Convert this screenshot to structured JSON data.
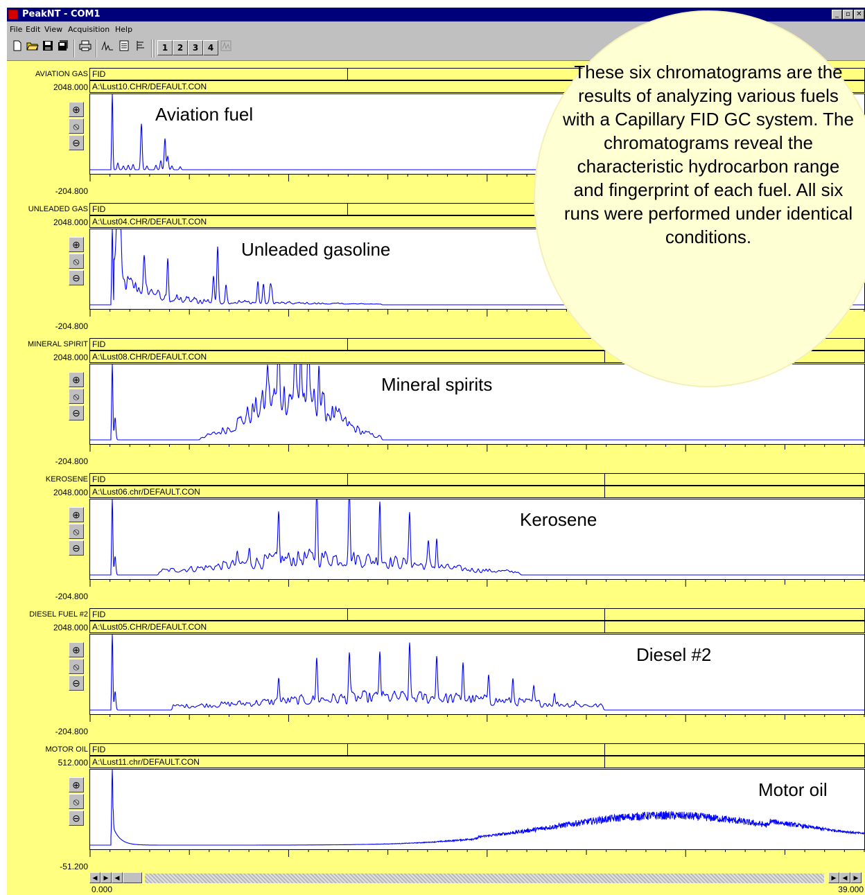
{
  "window": {
    "title": "PeakNT - COM1",
    "controls": [
      "_",
      "▫",
      "✕"
    ]
  },
  "menu": [
    "File",
    "Edit",
    "View",
    "Acquisition",
    "Help"
  ],
  "toolbar": {
    "icons": [
      "new-icon",
      "open-icon",
      "save-icon",
      "save-all-icon",
      "print-icon",
      "integrate-icon",
      "report-icon",
      "results-icon"
    ],
    "channel_buttons": [
      "1",
      "2",
      "3",
      "4"
    ]
  },
  "panels": [
    {
      "name": "AVIATION GAS",
      "detector": "FID",
      "file": "A:\\Lust10.CHR/DEFAULT.CON",
      "ymax": "2048.000",
      "ymin": "-204.800",
      "annotation": "Aviation fuel"
    },
    {
      "name": "UNLEADED GAS",
      "detector": "FID",
      "file": "A:\\Lust04.CHR/DEFAULT.CON",
      "ymax": "2048.000",
      "ymin": "-204.800",
      "annotation": "Unleaded gasoline"
    },
    {
      "name": "MINERAL SPIRIT",
      "detector": "FID",
      "file": "A:\\Lust08.CHR/DEFAULT.CON",
      "ymax": "2048.000",
      "ymin": "-204.800",
      "annotation": "Mineral spirits"
    },
    {
      "name": "KEROSENE",
      "detector": "FID",
      "file": "A:\\Lust06.chr/DEFAULT.CON",
      "ymax": "2048.000",
      "ymin": "-204.800",
      "annotation": "Kerosene"
    },
    {
      "name": "DIESEL FUEL #2",
      "detector": "FID",
      "file": "A:\\Lust05.CHR/DEFAULT.CON",
      "ymax": "2048.000",
      "ymin": "-204.800",
      "annotation": "Diesel #2"
    },
    {
      "name": "MOTOR OIL",
      "detector": "FID",
      "file": "A:\\Lust11.chr/DEFAULT.CON",
      "ymax": "512.000",
      "ymin": "-51.200",
      "annotation": "Motor oil"
    }
  ],
  "zoom_icons": [
    "zoom-in-icon",
    "zoom-reset-icon",
    "zoom-out-icon"
  ],
  "xrange": {
    "min": "0.000",
    "max": "39.000"
  },
  "callout": "These six chromatograms are the results of analyzing various fuels with a Capillary FID GC system.  The chromatograms reveal the characteristic hydrocarbon range and fingerprint of each fuel.  All six runs were performed under identical conditions.",
  "colors": {
    "trace": "#0000ff",
    "panel": "#ffff80",
    "callout": "#ffffd4",
    "titlebar": "#00007b"
  }
}
